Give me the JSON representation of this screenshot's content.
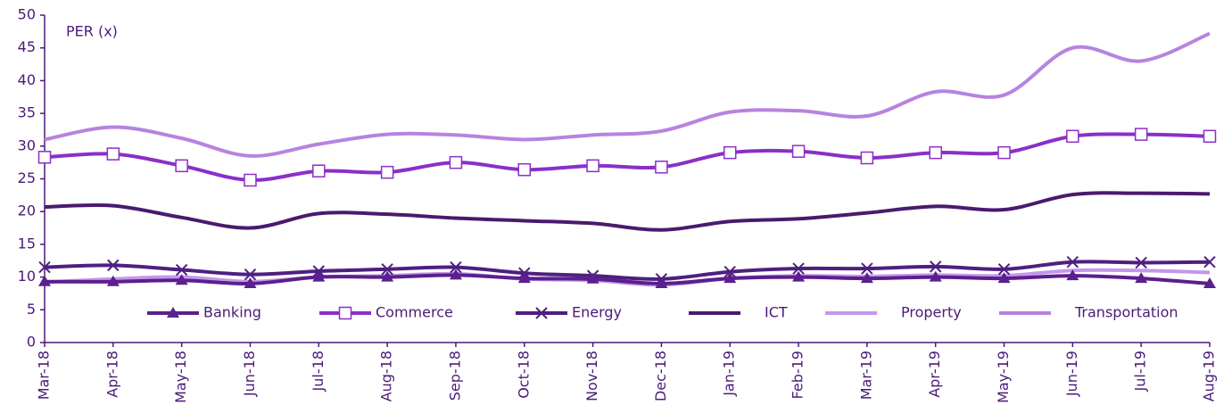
{
  "chart_data": {
    "type": "line",
    "title": "PER (x)",
    "categories": [
      "Mar-18",
      "Apr-18",
      "May-18",
      "Jun-18",
      "Jul-18",
      "Aug-18",
      "Sep-18",
      "Oct-18",
      "Nov-18",
      "Dec-18",
      "Jan-19",
      "Feb-19",
      "Mar-19",
      "Apr-19",
      "May-19",
      "Jun-19",
      "Jul-19",
      "Aug-19"
    ],
    "series": [
      {
        "name": "Banking",
        "color": "#5b1f8e",
        "marker": "triangle",
        "values": [
          9.3,
          9.3,
          9.5,
          9.0,
          10.0,
          10.0,
          10.3,
          9.8,
          9.7,
          9.0,
          9.8,
          10.0,
          9.8,
          10.0,
          9.8,
          10.2,
          9.8,
          9.0
        ]
      },
      {
        "name": "Commerce",
        "color": "#8b2fc9",
        "marker": "square",
        "values": [
          28.3,
          28.8,
          27.0,
          24.8,
          26.2,
          26.0,
          27.5,
          26.4,
          27.0,
          26.8,
          29.0,
          29.2,
          28.2,
          29.0,
          29.0,
          31.5,
          31.8,
          31.5
        ]
      },
      {
        "name": "Energy",
        "color": "#4e1f80",
        "marker": "x",
        "values": [
          11.5,
          11.8,
          11.1,
          10.4,
          10.9,
          11.2,
          11.5,
          10.6,
          10.2,
          9.7,
          10.8,
          11.3,
          11.3,
          11.6,
          11.2,
          12.3,
          12.2,
          12.3
        ]
      },
      {
        "name": "ICT",
        "color": "#4a1a6e",
        "marker": null,
        "values": [
          20.7,
          20.9,
          19.1,
          17.5,
          19.7,
          19.6,
          19.0,
          18.6,
          18.2,
          17.2,
          18.5,
          18.9,
          19.8,
          20.8,
          20.3,
          22.6,
          22.8,
          22.7
        ]
      },
      {
        "name": "Property",
        "color": "#c497ea",
        "marker": null,
        "values": [
          9.2,
          9.7,
          10.0,
          9.3,
          10.0,
          10.2,
          10.5,
          9.7,
          9.5,
          8.8,
          9.8,
          10.2,
          10.1,
          10.3,
          10.2,
          11.0,
          11.0,
          10.7
        ]
      },
      {
        "name": "Transportation",
        "color": "#b783e0",
        "marker": null,
        "values": [
          31.0,
          32.9,
          31.2,
          28.5,
          30.3,
          31.8,
          31.7,
          31.0,
          31.7,
          32.3,
          35.2,
          35.4,
          34.6,
          38.3,
          37.8,
          45.0,
          43.0,
          47.2
        ]
      }
    ],
    "ylim": [
      0,
      50
    ],
    "yticks": [
      0,
      5,
      10,
      15,
      20,
      25,
      30,
      35,
      40,
      45,
      50
    ],
    "legend": "bottom-inside"
  }
}
